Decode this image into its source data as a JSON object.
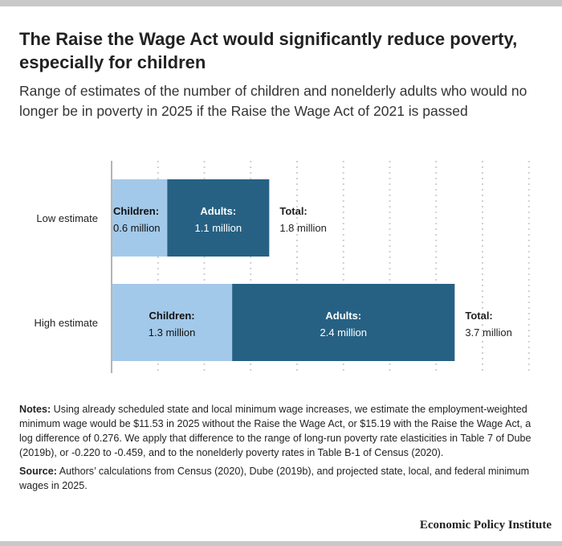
{
  "title": "The Raise the Wage Act would significantly reduce poverty, especially for children",
  "subtitle": "Range of estimates of the number of children and nonelderly adults who would no longer be in poverty in 2025 if the Raise the Wage Act of 2021 is passed",
  "chart_data": {
    "type": "bar",
    "orientation": "horizontal",
    "stacked": true,
    "title": "",
    "xlabel": "",
    "ylabel": "",
    "xlim": [
      0,
      4.5
    ],
    "grid": true,
    "categories": [
      "Low estimate",
      "High estimate"
    ],
    "series": [
      {
        "name": "Children",
        "label_prefix": "Children:",
        "color": "#a3c9ea",
        "values": [
          0.6,
          1.3
        ],
        "value_labels": [
          "0.6 million",
          "1.3 million"
        ]
      },
      {
        "name": "Adults",
        "label_prefix": "Adults:",
        "color": "#266184",
        "values": [
          1.1,
          2.4
        ],
        "value_labels": [
          "1.1 million",
          "2.4 million"
        ]
      }
    ],
    "totals": {
      "label_prefix": "Total:",
      "values": [
        1.8,
        3.7
      ],
      "value_labels": [
        "1.8 million",
        "3.7 million"
      ]
    }
  },
  "notes": {
    "notes_label": "Notes:",
    "notes_text": " Using already scheduled state and local minimum wage increases, we estimate the employment-weighted minimum wage would be $11.53 in 2025 without the Raise the Wage Act, or $15.19 with the Raise the Wage Act, a log difference of 0.276. We apply that difference to the range of long-run poverty rate elasticities in Table 7 of Dube (2019b), or -0.220 to -0.459, and to the nonelderly poverty rates in Table B-1 of Census (2020).",
    "source_label": "Source:",
    "source_text": " Authors’ calculations from Census (2020), Dube (2019b), and projected state, local, and federal minimum wages in 2025."
  },
  "brand": "Economic Policy Institute"
}
